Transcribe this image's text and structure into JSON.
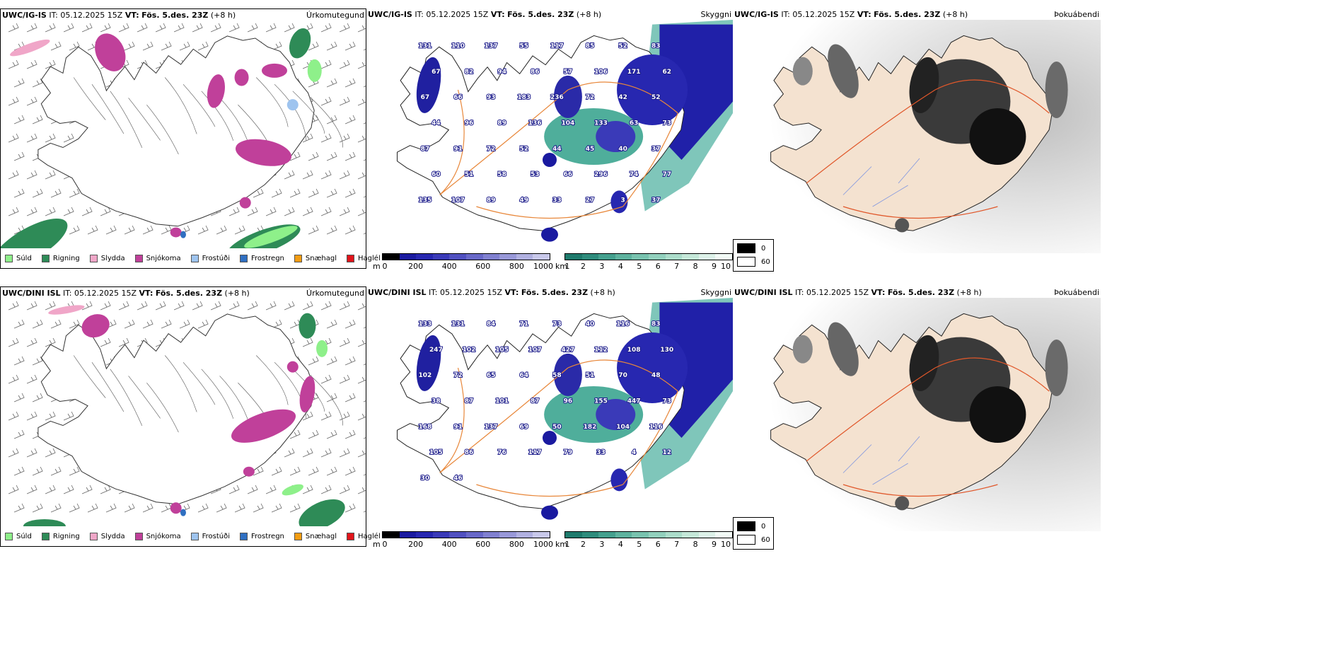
{
  "rows": [
    {
      "model": "UWC/IG-IS",
      "it_label": "IT:",
      "it_value": "05.12.2025 15Z",
      "vt_label": "VT:",
      "vt_value": "Fös. 5.des. 23Z",
      "lead": "(+8 h)",
      "precip_name": "Úrkomutegund",
      "cloud_name": "Skyggni",
      "fog_name": "Þokuábendi",
      "labels": [
        "131",
        "110",
        "137",
        "55",
        "117",
        "85",
        "52",
        "83",
        "67",
        "82",
        "94",
        "86",
        "57",
        "106",
        "171",
        "62",
        "67",
        "66",
        "93",
        "183",
        "236",
        "72",
        "42",
        "52",
        "44",
        "96",
        "89",
        "136",
        "104",
        "133",
        "63",
        "73",
        "87",
        "91",
        "72",
        "52",
        "44",
        "45",
        "40",
        "37",
        "60",
        "51",
        "58",
        "53",
        "66",
        "296",
        "74",
        "77",
        "135",
        "107",
        "89",
        "49",
        "33",
        "27",
        "3",
        "37"
      ]
    },
    {
      "model": "UWC/DINI ISL",
      "it_label": "IT:",
      "it_value": "05.12.2025 15Z",
      "vt_label": "VT:",
      "vt_value": "Fös. 5.des. 23Z",
      "lead": "(+8 h)",
      "precip_name": "Úrkomutegund",
      "cloud_name": "Skyggni",
      "fog_name": "Þokuábendi",
      "labels": [
        "133",
        "131",
        "84",
        "71",
        "73",
        "40",
        "116",
        "83",
        "247",
        "102",
        "105",
        "107",
        "427",
        "112",
        "108",
        "130",
        "102",
        "72",
        "65",
        "64",
        "58",
        "51",
        "70",
        "48",
        "38",
        "87",
        "101",
        "87",
        "96",
        "155",
        "447",
        "73",
        "168",
        "91",
        "137",
        "69",
        "50",
        "182",
        "104",
        "116",
        "105",
        "86",
        "76",
        "117",
        "79",
        "33",
        "4",
        "12",
        "30",
        "46"
      ]
    }
  ],
  "precip_legend": [
    {
      "label": "Súld",
      "color": "#8ef08a"
    },
    {
      "label": "Rigning",
      "color": "#2e8b57"
    },
    {
      "label": "Slydda",
      "color": "#f0a6c8"
    },
    {
      "label": "Snjókoma",
      "color": "#c0409a"
    },
    {
      "label": "Frostúði",
      "color": "#9ec4ef"
    },
    {
      "label": "Frostregn",
      "color": "#2f6fc1"
    },
    {
      "label": "Snæhagl",
      "color": "#f39c12"
    },
    {
      "label": "Haglél",
      "color": "#e0141a"
    }
  ],
  "cloud_legend": {
    "unit": "m",
    "ticks": [
      "0",
      "200",
      "400",
      "600",
      "800",
      "1000"
    ],
    "colors": [
      "#000000",
      "#1a1aa0",
      "#2727b0",
      "#3a3ab8",
      "#5050c0",
      "#6868c8",
      "#8080d0",
      "#9898d8",
      "#b0b0e0",
      "#c8c8ea"
    ]
  },
  "vis_legend": {
    "unit": "km",
    "ticks": [
      "1",
      "2",
      "3",
      "4",
      "5",
      "6",
      "7",
      "8",
      "9",
      "10"
    ],
    "colors": [
      "#1e7a6c",
      "#2e8c7c",
      "#44a08e",
      "#5eb29e",
      "#78c2ae",
      "#92d0bd",
      "#abdcca",
      "#c4e7d8",
      "#dcf1e8",
      "#f2faf6"
    ]
  },
  "fog_legend": [
    {
      "label": "0",
      "color": "#000000"
    },
    {
      "label": "60",
      "color": "#ffffff"
    }
  ]
}
